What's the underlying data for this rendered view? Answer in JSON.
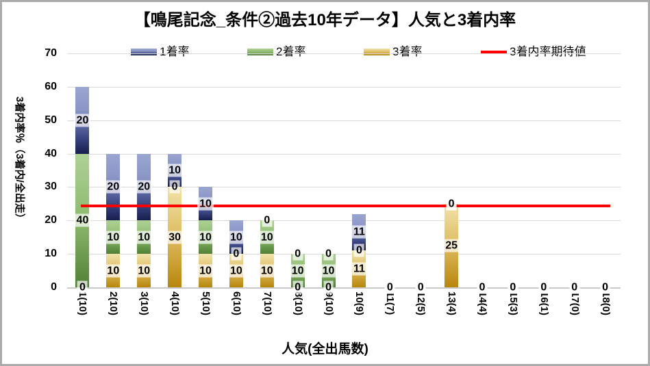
{
  "window": {
    "background": "#ffffff",
    "border_color": "#ababab"
  },
  "chart_data": {
    "type": "bar",
    "stacked": true,
    "title": "【鳴尾記念_条件②過去10年データ】人気と3着内率",
    "xlabel": "人気(全出馬数)",
    "ylabel": "3着内率％（3着内/全出走）",
    "ylim": [
      0,
      70
    ],
    "yticks": [
      0,
      10,
      20,
      30,
      40,
      50,
      60,
      70
    ],
    "grid": true,
    "legend_position": "top",
    "legend_order": [
      "1着率",
      "2着率",
      "3着率",
      "3着内率期待値"
    ],
    "categories": [
      "1(10)",
      "2(10)",
      "3(10)",
      "4(10)",
      "5(10)",
      "6(10)",
      "7(10)",
      "8(10)",
      "9(10)",
      "10(9)",
      "11(7)",
      "12(5)",
      "13(4)",
      "14(4)",
      "15(3)",
      "16(1)",
      "17(0)",
      "18(0)"
    ],
    "series": [
      {
        "name": "3着率",
        "stack_order": 0,
        "colors": {
          "top": "#f1e3ab",
          "mid": "#debb60",
          "bottom": "#b8860b"
        },
        "values": [
          0,
          10,
          10,
          30,
          10,
          10,
          10,
          0,
          0,
          11,
          0,
          0,
          25,
          0,
          0,
          0,
          0,
          0
        ]
      },
      {
        "name": "2着率",
        "stack_order": 1,
        "colors": {
          "top": "#aed096",
          "mid": "#8cba6d",
          "bottom": "#4f8034"
        },
        "values": [
          40,
          10,
          10,
          0,
          10,
          0,
          10,
          10,
          10,
          0,
          0,
          0,
          0,
          0,
          0,
          0,
          0,
          0
        ]
      },
      {
        "name": "1着率",
        "stack_order": 2,
        "colors": {
          "top": "#9ba5d1",
          "mid": "#8b96c6",
          "dark": "#3c4784",
          "bottom": "#171e4e"
        },
        "values": [
          20,
          20,
          20,
          10,
          10,
          10,
          0,
          0,
          0,
          11,
          0,
          0,
          0,
          0,
          0,
          0,
          0,
          0
        ]
      }
    ],
    "bar_totals": [
      60,
      40,
      40,
      40,
      30,
      20,
      20,
      10,
      10,
      22,
      0,
      0,
      25,
      0,
      0,
      0,
      0,
      0
    ],
    "expected_line": {
      "name": "3着内率期待値",
      "value": 24.3,
      "color": "#ff0000"
    },
    "colors_meta": {
      "gridline": "#d9d9d9",
      "axisline": "#c9c9c9",
      "label_background": "rgba(255,255,255,0.70)"
    }
  }
}
